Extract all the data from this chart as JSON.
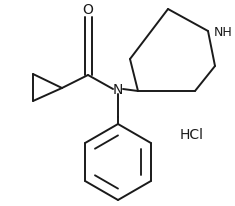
{
  "line_color": "#1a1a1a",
  "bg_color": "#ffffff",
  "lw": 1.4,
  "hcl_color": "#1a1a1a",
  "hcl_text": "HCl",
  "n_label": "N",
  "o_label": "O",
  "nh_label": "NH"
}
